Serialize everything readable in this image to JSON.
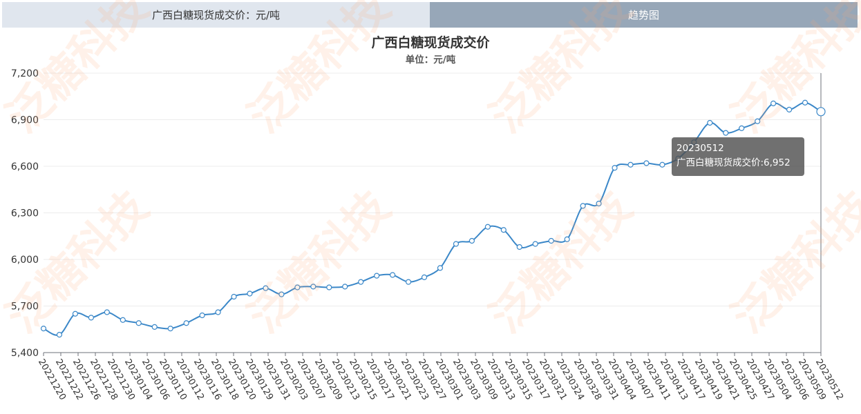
{
  "tabs": {
    "table_label": "广西白糖现货成交价：元/吨",
    "trend_label": "趋势图"
  },
  "watermark_text": "泛糖科技",
  "chart_data": {
    "type": "line",
    "title": "广西白糖现货成交价",
    "subtitle": "单位：元/吨",
    "series": [
      {
        "name": "广西白糖现货成交价",
        "color": "#3a87c8",
        "values": [
          5555,
          5515,
          5650,
          5625,
          5660,
          5610,
          5590,
          5565,
          5555,
          5590,
          5640,
          5660,
          5760,
          5780,
          5815,
          5775,
          5820,
          5825,
          5820,
          5825,
          5855,
          5895,
          5900,
          5855,
          5885,
          5945,
          6100,
          6120,
          6210,
          6190,
          6080,
          6100,
          6120,
          6130,
          6345,
          6360,
          6590,
          6610,
          6620,
          6610,
          6650,
          6755,
          6880,
          6815,
          6845,
          6890,
          7005,
          6965,
          7010,
          6952
        ]
      }
    ],
    "x_tick_labels": [
      "20221220",
      "20221222",
      "20221226",
      "20221228",
      "20221230",
      "20230104",
      "20230106",
      "20230110",
      "20230112",
      "20230116",
      "20230118",
      "20230120",
      "20230129",
      "20230131",
      "20230203",
      "20230207",
      "20230209",
      "20230213",
      "20230215",
      "20230217",
      "20230221",
      "20230223",
      "20230227",
      "20230301",
      "20230303",
      "20230309",
      "20230313",
      "20230315",
      "20230317",
      "20230321",
      "20230324",
      "20230328",
      "20230331",
      "20230404",
      "20230407",
      "20230411",
      "20230413",
      "20230417",
      "20230419",
      "20230421",
      "20230425",
      "20230427",
      "20230504",
      "20230506",
      "20230509",
      "20230512"
    ],
    "y_ticks": [
      5400,
      5700,
      6000,
      6300,
      6600,
      6900,
      7200
    ],
    "y_tick_labels": [
      "5,400",
      "5,700",
      "6,000",
      "6,300",
      "6,600",
      "6,900",
      "7,200"
    ],
    "ylim": [
      5400,
      7200
    ],
    "grid": true,
    "tooltip": {
      "date": "20230512",
      "label": "广西白糖现货成交价:6,952"
    }
  }
}
